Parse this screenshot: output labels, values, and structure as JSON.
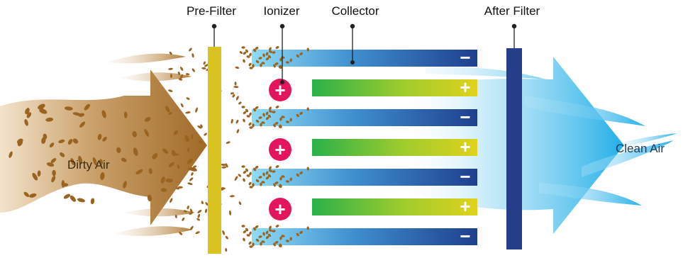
{
  "labels": {
    "pre_filter": "Pre-Filter",
    "ionizer": "Ionizer",
    "collector": "Collector",
    "after_filter": "After Filter",
    "dirty_air": "Dirty Air",
    "clean_air": "Clean Air"
  },
  "symbols": {
    "negative": "−",
    "positive": "+"
  },
  "colors": {
    "dirty_air": "#a9742f",
    "particle": "#9a6420",
    "pre_filter": "#d8c321",
    "after_filter": "#263d8a",
    "collector_light": "#8fd8f2",
    "collector_dark": "#1f3f8e",
    "plate_positive_light": "#2fb34a",
    "plate_positive_end": "#d8d21e",
    "ionizer": "#e3155c",
    "clean_air": "#2fb3ea"
  },
  "plates": [
    {
      "polarity": "negative"
    },
    {
      "polarity": "positive"
    },
    {
      "polarity": "negative"
    },
    {
      "polarity": "positive"
    },
    {
      "polarity": "negative"
    },
    {
      "polarity": "positive"
    },
    {
      "polarity": "negative"
    }
  ],
  "ionizers": [
    1,
    2,
    3
  ]
}
